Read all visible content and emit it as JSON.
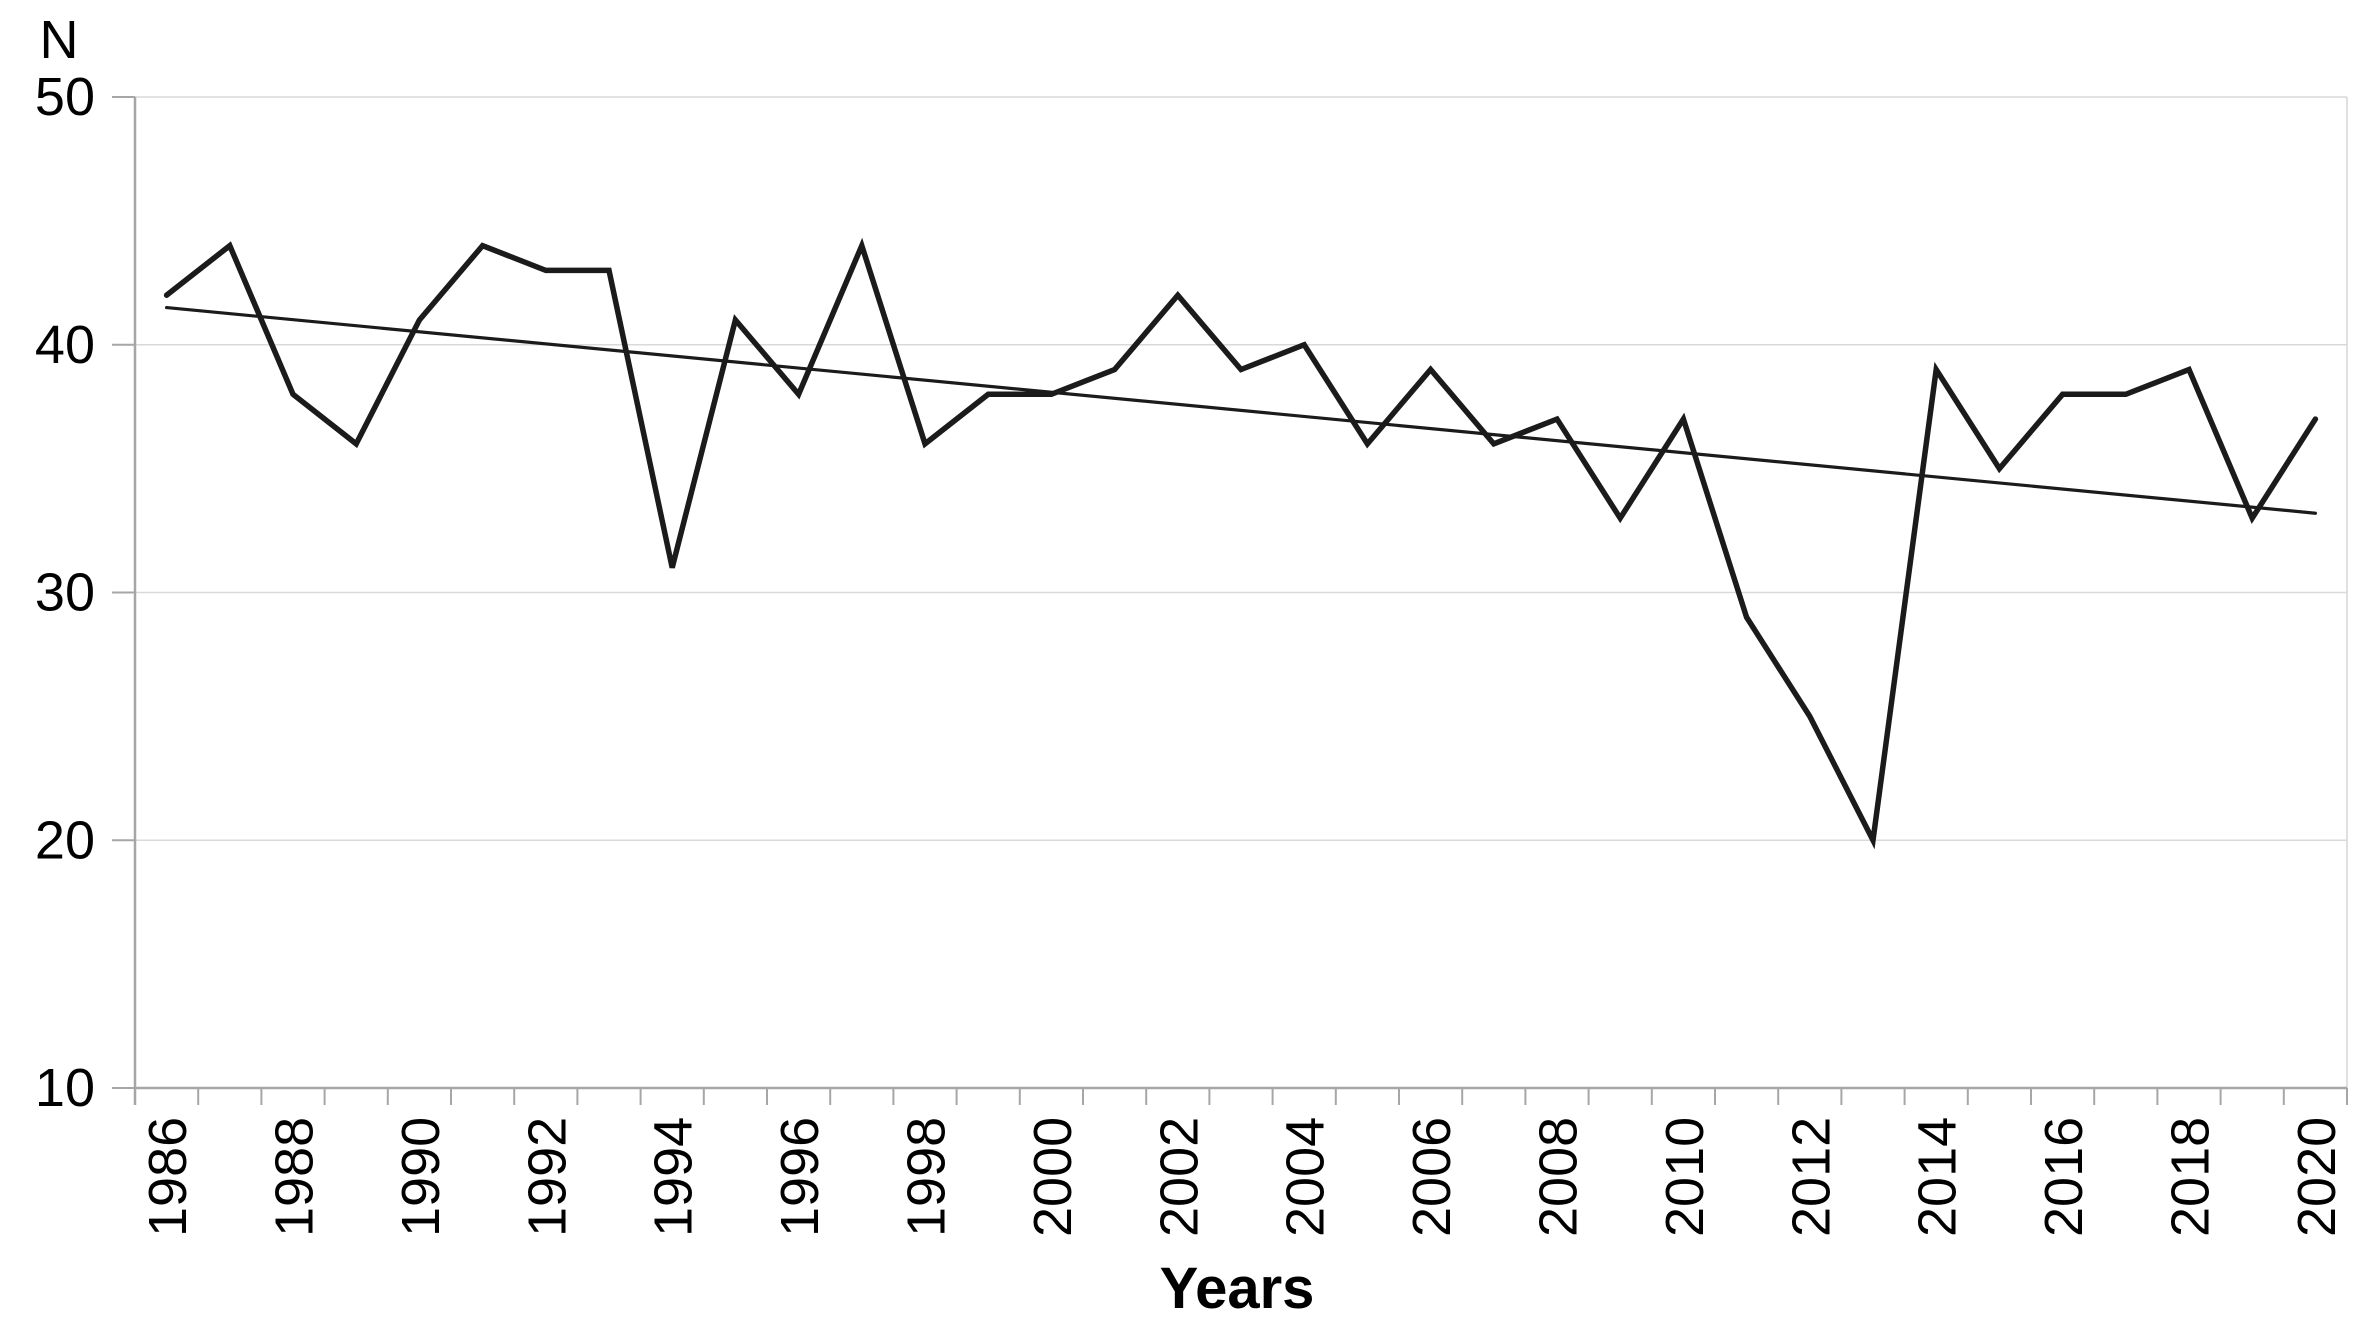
{
  "chart_data": {
    "type": "line",
    "title": "",
    "ylabel": "N",
    "xlabel": "Years",
    "x": [
      1986,
      1987,
      1988,
      1989,
      1990,
      1991,
      1992,
      1993,
      1994,
      1995,
      1996,
      1997,
      1998,
      1999,
      2000,
      2001,
      2002,
      2003,
      2004,
      2005,
      2006,
      2007,
      2008,
      2009,
      2010,
      2011,
      2012,
      2013,
      2014,
      2015,
      2016,
      2017,
      2018,
      2019,
      2020
    ],
    "series": [
      {
        "name": "N",
        "values": [
          42,
          44,
          38,
          36,
          41,
          44,
          43,
          43,
          31,
          41,
          38,
          44,
          36,
          38,
          38,
          39,
          42,
          39,
          40,
          36,
          39,
          36,
          37,
          33,
          37,
          29,
          25,
          20,
          39,
          35,
          38,
          38,
          39,
          33,
          37
        ]
      }
    ],
    "trendline": {
      "start_year": 1986,
      "start_value": 41.5,
      "end_year": 2020,
      "end_value": 33.2
    },
    "ylim": [
      10,
      50
    ],
    "yticks": [
      50,
      40,
      30,
      20,
      10
    ],
    "xtick_label_step": 2,
    "xtick_labels": [
      "1986",
      "1988",
      "1990",
      "1992",
      "1994",
      "1996",
      "1998",
      "2000",
      "2002",
      "2004",
      "2006",
      "2008",
      "2010",
      "2012",
      "2014",
      "2016",
      "2018",
      "2020"
    ],
    "grid": true,
    "legend": "none",
    "colors": {
      "line": "#1b1b1b",
      "trend": "#1b1b1b",
      "grid": "#d9d9d9",
      "axis": "#a6a6a6",
      "text": "#000000",
      "background": "#ffffff"
    }
  }
}
